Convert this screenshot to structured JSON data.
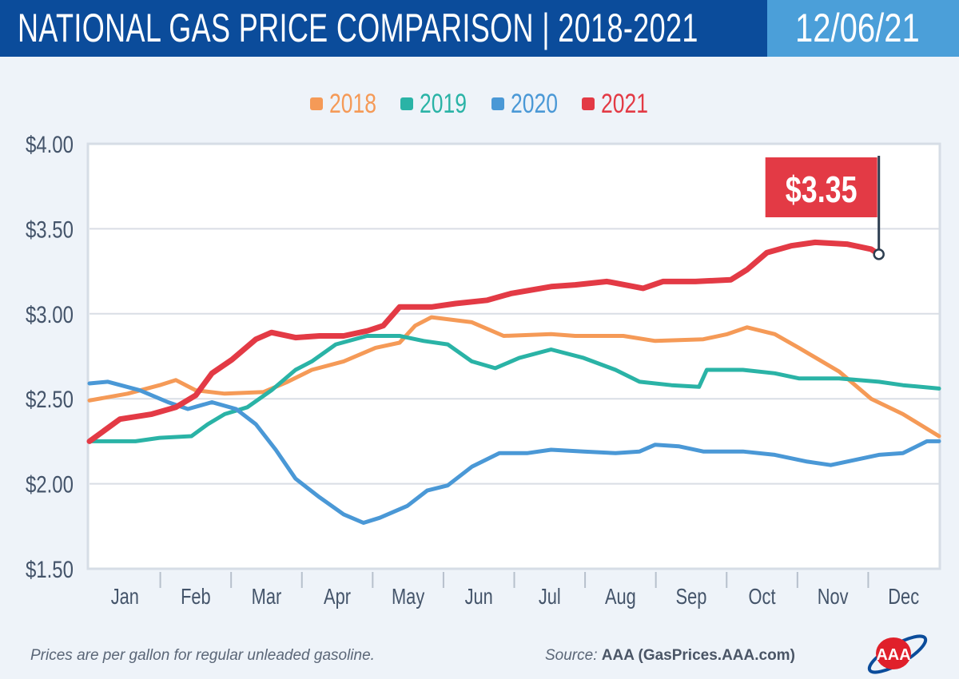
{
  "header": {
    "title": "NATIONAL GAS PRICE COMPARISON | 2018-2021",
    "date": "12/06/21"
  },
  "colors": {
    "header_bg": "#0b4c9b",
    "date_bg": "#4b9fd9",
    "2018": "#f59a57",
    "2019": "#2ab3a6",
    "2020": "#4a98d6",
    "2021": "#e33a45"
  },
  "footer": {
    "note": "Prices are per gallon for regular unleaded gasoline.",
    "source_label": "Source:",
    "source_value": "AAA (GasPrices.AAA.com)",
    "logo_text": "AAA"
  },
  "chart_data": {
    "type": "line",
    "title": "",
    "xlabel": "",
    "ylabel": "",
    "x_unit": "month of year (0 = start of Jan, 12 = end of Dec)",
    "x_tick_labels": [
      "Jan",
      "Feb",
      "Mar",
      "Apr",
      "May",
      "Jun",
      "Jul",
      "Aug",
      "Sep",
      "Oct",
      "Nov",
      "Dec"
    ],
    "y_tick_labels": [
      "$4.00",
      "$3.50",
      "$3.00",
      "$2.50",
      "$2.00",
      "$1.50"
    ],
    "ylim": [
      1.5,
      4.0
    ],
    "xlim": [
      0,
      12
    ],
    "grid": "horizontal",
    "legend": "top-center",
    "annotation": {
      "text": "$3.35",
      "series": "2021",
      "x": 11.15,
      "y": 3.35
    },
    "series": [
      {
        "name": "2018",
        "x": [
          0,
          0.54,
          0.99,
          1.22,
          1.5,
          1.91,
          2.46,
          2.8,
          3.14,
          3.59,
          4.04,
          4.38,
          4.6,
          4.83,
          5.4,
          5.85,
          6.52,
          6.86,
          7.54,
          7.99,
          8.67,
          9.01,
          9.29,
          9.68,
          10.02,
          10.59,
          11.04,
          11.49,
          12
        ],
        "y": [
          2.49,
          2.53,
          2.58,
          2.61,
          2.55,
          2.53,
          2.54,
          2.6,
          2.67,
          2.72,
          2.8,
          2.83,
          2.93,
          2.98,
          2.95,
          2.87,
          2.88,
          2.87,
          2.87,
          2.84,
          2.85,
          2.88,
          2.92,
          2.88,
          2.8,
          2.66,
          2.5,
          2.41,
          2.28
        ]
      },
      {
        "name": "2019",
        "x": [
          0,
          0.65,
          0.99,
          1.44,
          1.67,
          1.91,
          2.23,
          2.57,
          2.91,
          3.14,
          3.48,
          3.92,
          4.38,
          4.72,
          5.06,
          5.4,
          5.73,
          6.07,
          6.52,
          6.98,
          7.43,
          7.77,
          8.22,
          8.61,
          8.72,
          9.23,
          9.68,
          10.02,
          10.59,
          11.15,
          11.49,
          12
        ],
        "y": [
          2.25,
          2.25,
          2.27,
          2.28,
          2.35,
          2.41,
          2.45,
          2.55,
          2.67,
          2.72,
          2.82,
          2.87,
          2.87,
          2.84,
          2.82,
          2.72,
          2.68,
          2.74,
          2.79,
          2.74,
          2.67,
          2.6,
          2.58,
          2.57,
          2.67,
          2.67,
          2.65,
          2.62,
          2.62,
          2.6,
          2.58,
          2.56
        ]
      },
      {
        "name": "2020",
        "x": [
          0,
          0.26,
          0.71,
          1.11,
          1.39,
          1.73,
          2.07,
          2.35,
          2.63,
          2.91,
          3.25,
          3.59,
          3.87,
          4.1,
          4.49,
          4.77,
          5.06,
          5.4,
          5.79,
          6.18,
          6.52,
          6.98,
          7.43,
          7.77,
          7.99,
          8.33,
          8.67,
          9.23,
          9.68,
          10.14,
          10.47,
          10.81,
          11.15,
          11.49,
          11.83,
          12
        ],
        "y": [
          2.59,
          2.6,
          2.55,
          2.48,
          2.44,
          2.48,
          2.44,
          2.35,
          2.2,
          2.03,
          1.92,
          1.82,
          1.77,
          1.8,
          1.87,
          1.96,
          1.99,
          2.1,
          2.18,
          2.18,
          2.2,
          2.19,
          2.18,
          2.19,
          2.23,
          2.22,
          2.19,
          2.19,
          2.17,
          2.13,
          2.11,
          2.14,
          2.17,
          2.18,
          2.25,
          2.25
        ]
      },
      {
        "name": "2021",
        "x": [
          0,
          0.43,
          0.88,
          1.22,
          1.5,
          1.73,
          2.01,
          2.35,
          2.57,
          2.91,
          3.25,
          3.59,
          3.93,
          4.15,
          4.38,
          4.83,
          5.17,
          5.62,
          5.96,
          6.52,
          6.86,
          7.31,
          7.82,
          8.1,
          8.56,
          9.06,
          9.29,
          9.57,
          9.91,
          10.25,
          10.7,
          11.04,
          11.15
        ],
        "y": [
          2.25,
          2.38,
          2.41,
          2.45,
          2.52,
          2.65,
          2.73,
          2.85,
          2.89,
          2.86,
          2.87,
          2.87,
          2.9,
          2.93,
          3.04,
          3.04,
          3.06,
          3.08,
          3.12,
          3.16,
          3.17,
          3.19,
          3.15,
          3.19,
          3.19,
          3.2,
          3.26,
          3.36,
          3.4,
          3.42,
          3.41,
          3.38,
          3.35
        ]
      }
    ]
  }
}
